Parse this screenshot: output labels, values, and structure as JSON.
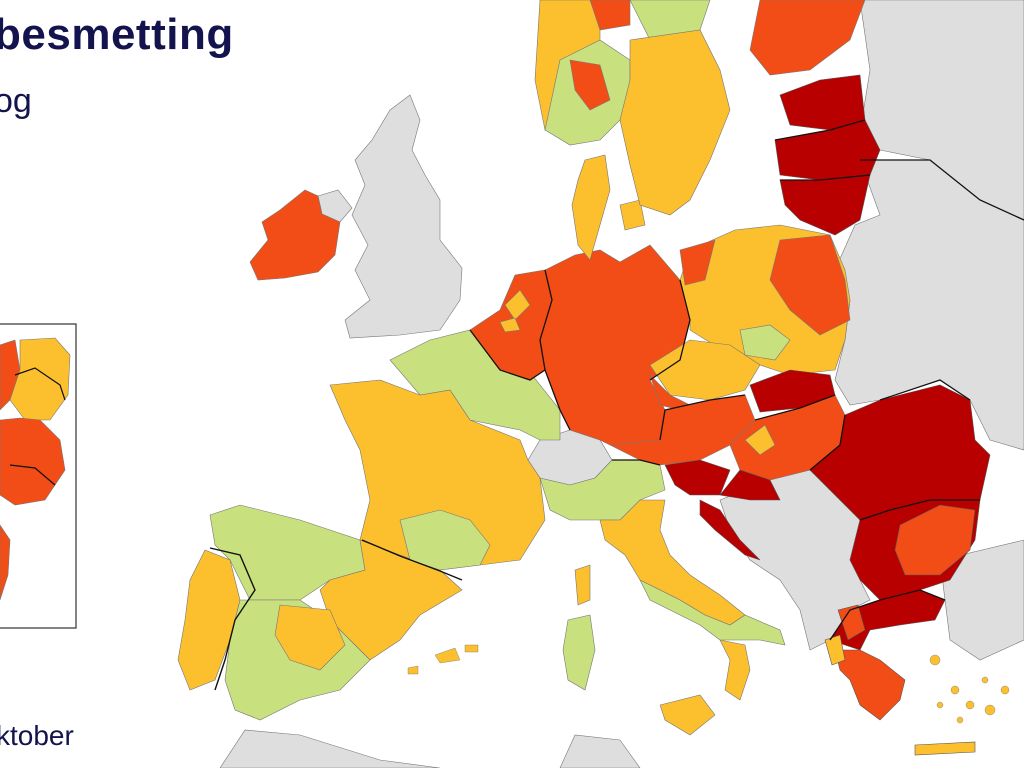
{
  "title": "besmetting",
  "subtitle": "og",
  "date_label": "ktober",
  "colors": {
    "sea": "#ffffff",
    "non_member": "#dedede",
    "green": "#c8e07d",
    "orange": "#fcbf2e",
    "red": "#f24d16",
    "dark_red": "#b80000",
    "border": "#111111",
    "title_text": "#13144d"
  }
}
